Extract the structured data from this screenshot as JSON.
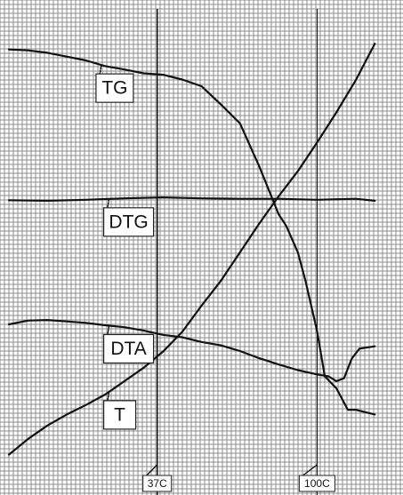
{
  "chart_data": {
    "type": "line",
    "grid": true,
    "x_ticks": [
      {
        "label": "37C",
        "x": 0.385
      },
      {
        "label": "100C",
        "x": 0.8
      }
    ],
    "xlim": [
      0,
      1
    ],
    "ylim": [
      0,
      1
    ],
    "series": [
      {
        "name": "TG",
        "x": [
          0,
          0.05,
          0.1,
          0.15,
          0.2,
          0.25,
          0.3,
          0.35,
          0.4,
          0.45,
          0.5,
          0.55,
          0.6,
          0.65,
          0.7,
          0.72,
          0.75,
          0.77,
          0.8,
          0.82,
          0.85,
          0.88,
          0.9,
          0.95
        ],
        "y": [
          0.915,
          0.913,
          0.908,
          0.9,
          0.892,
          0.88,
          0.873,
          0.865,
          0.862,
          0.852,
          0.838,
          0.8,
          0.76,
          0.67,
          0.57,
          0.545,
          0.49,
          0.43,
          0.325,
          0.23,
          0.205,
          0.16,
          0.16,
          0.15
        ]
      },
      {
        "name": "DTG",
        "x": [
          0,
          0.1,
          0.2,
          0.3,
          0.4,
          0.5,
          0.6,
          0.7,
          0.8,
          0.9,
          0.95
        ],
        "y": [
          0.599,
          0.598,
          0.6,
          0.603,
          0.605,
          0.603,
          0.602,
          0.602,
          0.6,
          0.602,
          0.598
        ]
      },
      {
        "name": "DTA",
        "x": [
          0,
          0.05,
          0.1,
          0.15,
          0.2,
          0.25,
          0.3,
          0.35,
          0.4,
          0.45,
          0.5,
          0.55,
          0.6,
          0.65,
          0.7,
          0.75,
          0.8,
          0.83,
          0.85,
          0.87,
          0.89,
          0.91,
          0.95
        ],
        "y": [
          0.339,
          0.347,
          0.348,
          0.345,
          0.342,
          0.337,
          0.333,
          0.326,
          0.317,
          0.312,
          0.302,
          0.295,
          0.283,
          0.268,
          0.255,
          0.243,
          0.234,
          0.23,
          0.22,
          0.226,
          0.267,
          0.288,
          0.293
        ]
      },
      {
        "name": "T",
        "x": [
          0,
          0.05,
          0.1,
          0.15,
          0.2,
          0.25,
          0.3,
          0.35,
          0.4,
          0.45,
          0.5,
          0.55,
          0.6,
          0.65,
          0.7,
          0.75,
          0.8,
          0.85,
          0.9,
          0.95
        ],
        "y": [
          0.066,
          0.099,
          0.127,
          0.15,
          0.17,
          0.192,
          0.22,
          0.248,
          0.282,
          0.323,
          0.378,
          0.43,
          0.49,
          0.55,
          0.607,
          0.66,
          0.72,
          0.783,
          0.85,
          0.927
        ]
      }
    ],
    "callouts": [
      {
        "label": "TG",
        "series": "TG",
        "at_x": 0.24
      },
      {
        "label": "DTG",
        "series": "DTG",
        "at_x": 0.26
      },
      {
        "label": "DTA",
        "series": "DTA",
        "at_x": 0.26
      },
      {
        "label": "T",
        "series": "T",
        "at_x": 0.26
      }
    ]
  }
}
